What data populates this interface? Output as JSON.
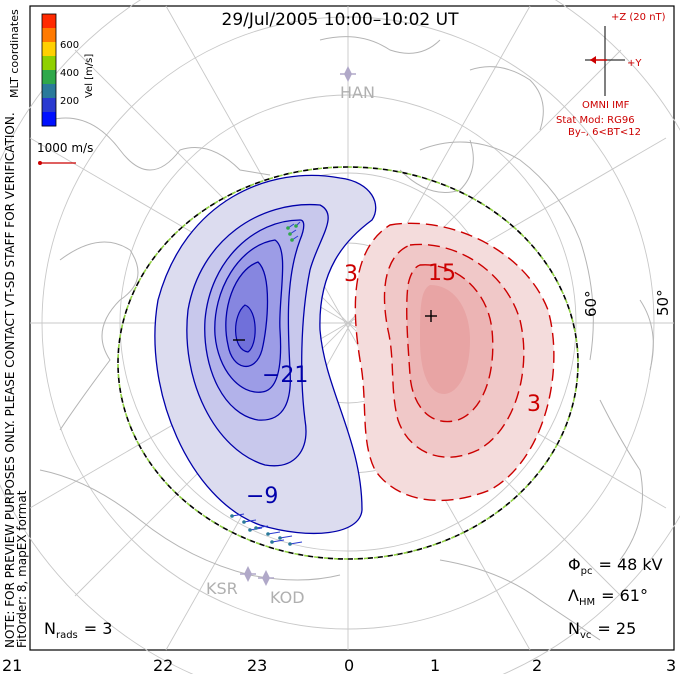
{
  "title": "29/Jul/2005 10:00–10:02 UT",
  "colorbar": {
    "label": "Vel [m/s]",
    "ticks": [
      "600",
      "400",
      "200"
    ],
    "colors": [
      "#ff2a00",
      "#ff7a00",
      "#ffd000",
      "#8fd000",
      "#2fa84a",
      "#2a7a9a",
      "#2a3ad0",
      "#0010ff"
    ]
  },
  "coords_label": "MLT coordinates",
  "ref_vector_label": "1000 m/s",
  "side_note": "NOTE: FOR PREVIEW PURPOSES ONLY. PLEASE CONTACT VT-SD STAFF FOR VERIFICATION.",
  "side_note2": "FitOrder: 8, mapEX format",
  "imf": {
    "z_label": "+Z (20 nT)",
    "y_label": "+Y",
    "source": "OMNI IMF",
    "stat_model": "Stat Mod: RG96",
    "condition": "By–, 6<BT<12",
    "color": "#cc0000"
  },
  "contour_labels": {
    "neg_1": "−21",
    "neg_2": "−9",
    "pos_1": "3",
    "pos_2": "15",
    "pos_3": "3"
  },
  "lat_labels": [
    "60°",
    "50°"
  ],
  "stations": [
    "HAN",
    "KSR",
    "KOD"
  ],
  "stats": {
    "phi_pc_symbol": "Φ",
    "phi_pc_sub": "pc",
    "phi_pc_value": "= 48 kV",
    "lambda_hm_symbol": "Λ",
    "lambda_hm_sub": "HM",
    "lambda_hm_value": "= 61°",
    "n_vc_symbol": "N",
    "n_vc_sub": "vc",
    "n_vc_value": "= 25",
    "n_rads_symbol": "N",
    "n_rads_sub": "rads",
    "n_rads_value": "= 3"
  },
  "mlt_axis": [
    "21",
    "22",
    "23",
    "0",
    "1",
    "2",
    "3"
  ],
  "colors": {
    "negative": "#0000aa",
    "positive": "#cc0000",
    "boundary": "#8fd040",
    "grid": "#c8c8c8",
    "coast": "#b4b4b4"
  }
}
